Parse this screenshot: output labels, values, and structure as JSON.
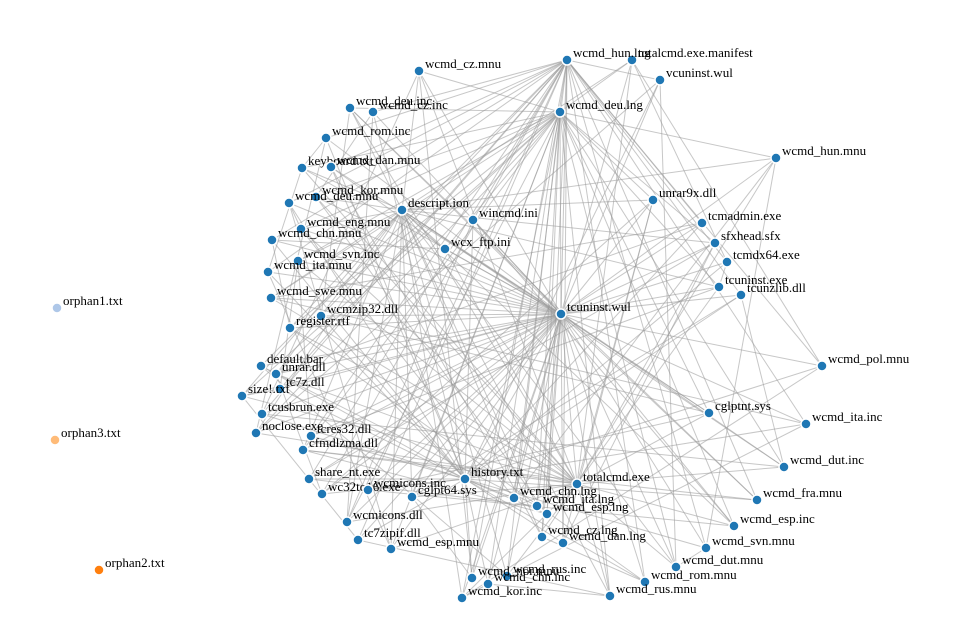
{
  "graph": {
    "hub_node": "tcuninst.wul",
    "hub_color": "#1f77b4",
    "edge_color": "#999999",
    "groups": {
      "connected": "#1f77b4",
      "orphan1.txt": "#aec7e8",
      "orphan2.txt": "#ff7f0e",
      "orphan3.txt": "#ffbb78"
    },
    "nodes": [
      {
        "id": "tcuninst.wul"
      },
      {
        "id": "totalcmd.exe.manifest"
      },
      {
        "id": "vcuninst.wul"
      },
      {
        "id": "wcmd_deu.lng"
      },
      {
        "id": "unrar9x.dll"
      },
      {
        "id": "wincmd.ini"
      },
      {
        "id": "wcx_ftp.ini"
      },
      {
        "id": "tcmadmin.exe"
      },
      {
        "id": "sfxhead.sfx"
      },
      {
        "id": "tcmdx64.exe"
      },
      {
        "id": "tcuninst.exe"
      },
      {
        "id": "tcunzlib.dll"
      },
      {
        "id": "wcmd_hun.mnu"
      },
      {
        "id": "wcmd_pol.mnu"
      },
      {
        "id": "cglptnt.sys"
      },
      {
        "id": "wcmd_ita.inc"
      },
      {
        "id": "wcmd_dut.inc"
      },
      {
        "id": "wcmd_fra.mnu"
      },
      {
        "id": "wcmd_esp.inc"
      },
      {
        "id": "wcmd_svn.mnu"
      },
      {
        "id": "wcmd_dut.mnu"
      },
      {
        "id": "wcmd_rom.mnu"
      },
      {
        "id": "wcmd_rus.mnu"
      },
      {
        "id": "totalcmd.exe"
      },
      {
        "id": "history.txt"
      },
      {
        "id": "wcmd_chn.lng"
      },
      {
        "id": "wcmd_ita.lng"
      },
      {
        "id": "wcmd_esp.lng"
      },
      {
        "id": "wcmd_cz.lng"
      },
      {
        "id": "wcmd_dan.lng"
      },
      {
        "id": "wcmd_rus.inc"
      },
      {
        "id": "wcmd_chn.inc"
      },
      {
        "id": "wcmd_kor.inc"
      },
      {
        "id": "wcmd_nor.mnu"
      },
      {
        "id": "wcmd_esp.mnu"
      },
      {
        "id": "tc7zipif.dll"
      },
      {
        "id": "wcmicons.dll"
      },
      {
        "id": "wc32to16.exe"
      },
      {
        "id": "cglpt64.sys"
      },
      {
        "id": "wcmicons.inc"
      },
      {
        "id": "descript.ion"
      },
      {
        "id": "wcmd_kor.mnu"
      },
      {
        "id": "wcmd_deu.mnu"
      },
      {
        "id": "wcmd_eng.mnu"
      },
      {
        "id": "wcmd_chn.mnu"
      },
      {
        "id": "wcmd_svn.inc"
      },
      {
        "id": "wcmd_ita.mnu"
      },
      {
        "id": "wcmd_swe.mnu"
      },
      {
        "id": "wcmzip32.dll"
      },
      {
        "id": "register.rtf"
      },
      {
        "id": "default.bar"
      },
      {
        "id": "unrar.dll"
      },
      {
        "id": "tc7z.dll"
      },
      {
        "id": "size!.txt"
      },
      {
        "id": "tcusbrun.exe"
      },
      {
        "id": "noclose.exe"
      },
      {
        "id": "tcres32.dll"
      },
      {
        "id": "cfmdlzma.dll"
      },
      {
        "id": "share_nt.exe"
      },
      {
        "id": "wcmd_cz.mnu"
      },
      {
        "id": "wcmd_cz.inc"
      },
      {
        "id": "wcmd_deu.inc"
      },
      {
        "id": "wcmd_rom.inc"
      },
      {
        "id": "keyboard.txt"
      },
      {
        "id": "wcmd_dan.mnu"
      },
      {
        "id": "wcmd_hun.lng"
      },
      {
        "id": "orphan1.txt"
      },
      {
        "id": "orphan3.txt"
      },
      {
        "id": "orphan2.txt"
      }
    ]
  }
}
